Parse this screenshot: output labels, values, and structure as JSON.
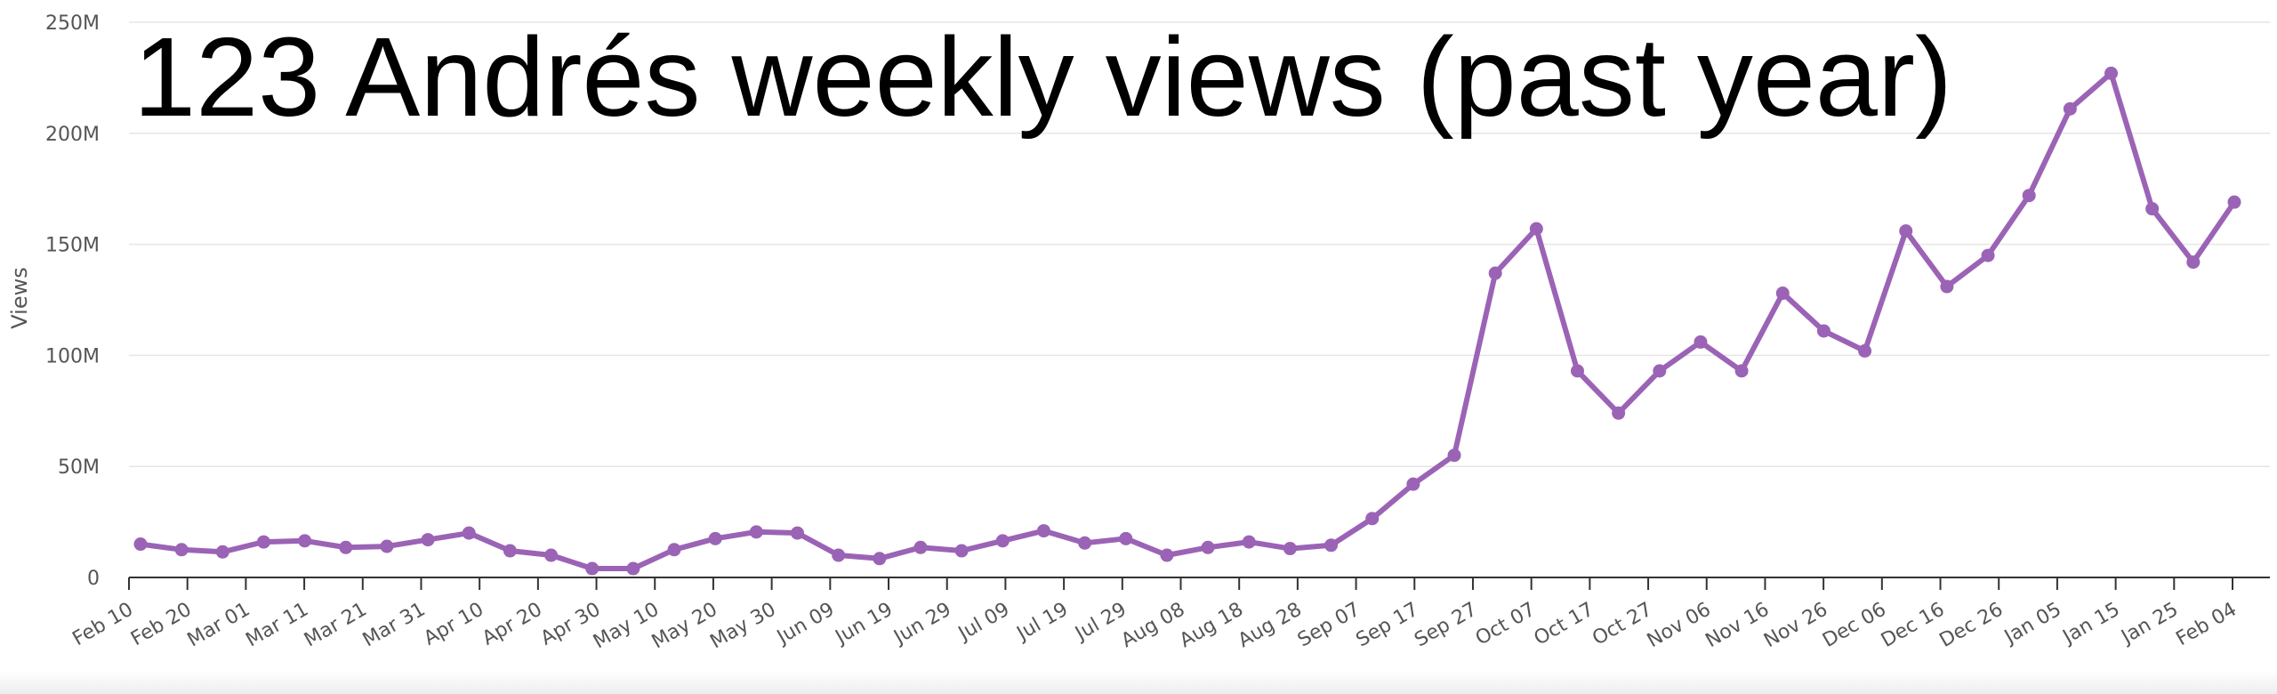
{
  "chart_data": {
    "type": "line",
    "title": "123 Andrés weekly views (past year)",
    "ylabel": "Views",
    "xlabel": "",
    "ylim": [
      0,
      250000000
    ],
    "y_ticks": [
      {
        "value": 0,
        "label": "0"
      },
      {
        "value": 50000000,
        "label": "50M"
      },
      {
        "value": 100000000,
        "label": "100M"
      },
      {
        "value": 150000000,
        "label": "150M"
      },
      {
        "value": 200000000,
        "label": "200M"
      },
      {
        "value": 250000000,
        "label": "250M"
      }
    ],
    "x_tick_labels": [
      "Feb 10",
      "Feb 20",
      "Mar 01",
      "Mar 11",
      "Mar 21",
      "Mar 31",
      "Apr 10",
      "Apr 20",
      "Apr 30",
      "May 10",
      "May 20",
      "May 30",
      "Jun 09",
      "Jun 19",
      "Jun 29",
      "Jul 09",
      "Jul 19",
      "Jul 29",
      "Aug 08",
      "Aug 18",
      "Aug 28",
      "Sep 07",
      "Sep 17",
      "Sep 27",
      "Oct 07",
      "Oct 17",
      "Oct 27",
      "Nov 06",
      "Nov 16",
      "Nov 26",
      "Dec 06",
      "Dec 16",
      "Dec 26",
      "Jan 05",
      "Jan 15",
      "Jan 25",
      "Feb 04"
    ],
    "grid": true,
    "color": "#9b63b5",
    "series": [
      {
        "x": [
          "Feb 10",
          "Feb 17",
          "Feb 24",
          "Mar 03",
          "Mar 10",
          "Mar 17",
          "Mar 24",
          "Mar 31",
          "Apr 07",
          "Apr 14",
          "Apr 21",
          "Apr 28",
          "May 05",
          "May 12",
          "May 19",
          "May 26",
          "Jun 02",
          "Jun 09",
          "Jun 16",
          "Jun 23",
          "Jun 30",
          "Jul 07",
          "Jul 14",
          "Jul 21",
          "Jul 28",
          "Aug 04",
          "Aug 11",
          "Aug 18",
          "Aug 25",
          "Sep 01",
          "Sep 08",
          "Sep 15",
          "Sep 22",
          "Sep 29",
          "Oct 06",
          "Oct 13",
          "Oct 20",
          "Oct 27",
          "Nov 03",
          "Nov 10",
          "Nov 17",
          "Nov 24",
          "Dec 01",
          "Dec 08",
          "Dec 15",
          "Dec 22",
          "Dec 29",
          "Jan 05",
          "Jan 12",
          "Jan 19",
          "Jan 26",
          "Feb 02"
        ],
        "values": [
          15000000,
          12500000,
          11500000,
          16000000,
          16500000,
          13500000,
          14000000,
          17000000,
          20000000,
          12000000,
          10000000,
          4000000,
          4000000,
          12500000,
          17500000,
          20500000,
          20000000,
          10000000,
          8500000,
          13500000,
          12000000,
          16500000,
          21000000,
          15500000,
          17500000,
          10000000,
          13500000,
          16000000,
          13000000,
          14500000,
          26500000,
          42000000,
          55000000,
          137000000,
          157000000,
          93000000,
          74000000,
          93000000,
          106000000,
          93000000,
          128000000,
          111000000,
          102000000,
          156000000,
          131000000,
          145000000,
          172000000,
          211000000,
          227000000,
          166000000,
          142000000,
          169000000
        ]
      }
    ]
  }
}
